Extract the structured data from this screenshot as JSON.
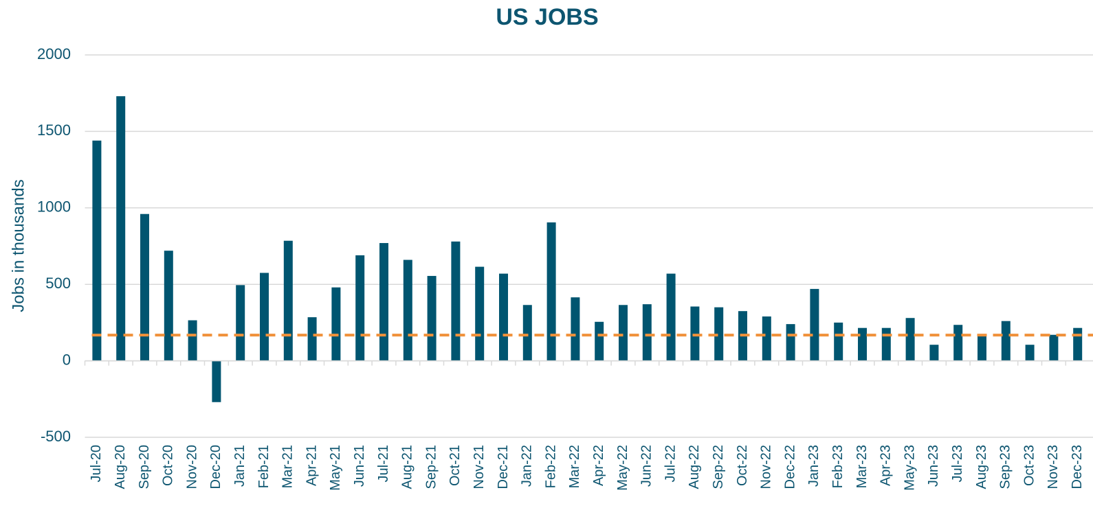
{
  "chart_data": {
    "type": "bar",
    "title": "US JOBS",
    "y_label": "Jobs in thousands",
    "categories": [
      "Jul-20",
      "Aug-20",
      "Sep-20",
      "Oct-20",
      "Nov-20",
      "Dec-20",
      "Jan-21",
      "Feb-21",
      "Mar-21",
      "Apr-21",
      "May-21",
      "Jun-21",
      "Jul-21",
      "Aug-21",
      "Sep-21",
      "Oct-21",
      "Nov-21",
      "Dec-21",
      "Jan-22",
      "Feb-22",
      "Mar-22",
      "Apr-22",
      "May-22",
      "Jun-22",
      "Jul-22",
      "Aug-22",
      "Sep-22",
      "Oct-22",
      "Nov-22",
      "Dec-22",
      "Jan-23",
      "Feb-23",
      "Mar-23",
      "Apr-23",
      "May-23",
      "Jun-23",
      "Jul-23",
      "Aug-23",
      "Sep-23",
      "Oct-23",
      "Nov-23",
      "Dec-23"
    ],
    "values": [
      1440,
      1730,
      960,
      720,
      265,
      -270,
      495,
      575,
      785,
      285,
      480,
      690,
      770,
      660,
      555,
      780,
      615,
      570,
      365,
      905,
      415,
      255,
      365,
      370,
      570,
      355,
      350,
      325,
      290,
      240,
      470,
      250,
      215,
      215,
      280,
      105,
      235,
      165,
      260,
      105,
      170,
      215
    ],
    "color": "#005570",
    "reference_line": {
      "value": 168,
      "color": "#f0913a"
    },
    "ylim": [
      -500,
      2000
    ],
    "yticks": [
      -500,
      0,
      500,
      1000,
      1500,
      2000
    ],
    "grid": true
  }
}
